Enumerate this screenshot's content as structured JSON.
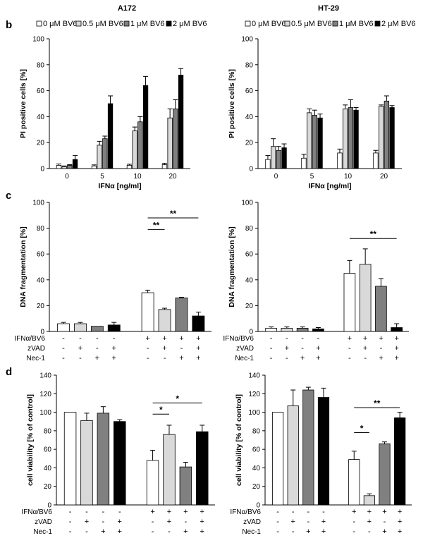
{
  "panel_labels": [
    "b",
    "c",
    "d"
  ],
  "titles": {
    "left": "A172",
    "right": "HT-29"
  },
  "colors": {
    "c0": "#ffffff",
    "c1": "#d9d9d9",
    "c2": "#808080",
    "c3": "#000000",
    "stroke": "#000000"
  },
  "treatment_rows": [
    {
      "label": "IFNα/BV6",
      "marks": [
        "-",
        "-",
        "-",
        "-",
        "+",
        "+",
        "+",
        "+"
      ]
    },
    {
      "label": "zVAD",
      "marks": [
        "-",
        "+",
        "-",
        "+",
        "-",
        "+",
        "-",
        "+"
      ]
    },
    {
      "label": "Nec-1",
      "marks": [
        "-",
        "-",
        "+",
        "+",
        "-",
        "-",
        "+",
        "+"
      ]
    }
  ],
  "chart_data": [
    {
      "panel": "b",
      "title": "A172",
      "type": "bar",
      "legend": [
        "0 μM BV6",
        "0.5 μM BV6",
        "1 μM BV6",
        "2 μM BV6"
      ],
      "xlabel": "IFNα [ng/ml]",
      "ylabel": "PI positive cells [%]",
      "ylim": [
        0,
        100
      ],
      "yticks": [
        0,
        20,
        40,
        60,
        80,
        100
      ],
      "categories": [
        "0",
        "5",
        "10",
        "20"
      ],
      "series": [
        {
          "name": "0 μM BV6",
          "values": [
            2.5,
            2,
            2.5,
            3
          ],
          "errors": [
            1,
            0.8,
            0.8,
            1
          ]
        },
        {
          "name": "0.5 μM BV6",
          "values": [
            1.5,
            18,
            29,
            39
          ],
          "errors": [
            0.5,
            3,
            3,
            7
          ]
        },
        {
          "name": "1 μM BV6",
          "values": [
            2.5,
            23,
            36,
            46
          ],
          "errors": [
            0.5,
            2,
            4,
            7
          ]
        },
        {
          "name": "2 μM BV6",
          "values": [
            7,
            50,
            64,
            72
          ],
          "errors": [
            3,
            6,
            7,
            5
          ]
        }
      ],
      "significance": []
    },
    {
      "panel": "b",
      "title": "HT-29",
      "type": "bar",
      "legend": [
        "0 μM BV6",
        "0.5 μM BV6",
        "1 μM BV6",
        "2 μM BV6"
      ],
      "xlabel": "IFNα [ng/ml]",
      "ylabel": "PI positive cells [%]",
      "ylim": [
        0,
        100
      ],
      "yticks": [
        0,
        20,
        40,
        60,
        80,
        100
      ],
      "categories": [
        "0",
        "5",
        "10",
        "20"
      ],
      "series": [
        {
          "name": "0 μM BV6",
          "values": [
            7,
            8,
            12,
            12
          ],
          "errors": [
            3,
            3,
            3,
            2
          ]
        },
        {
          "name": "0.5 μM BV6",
          "values": [
            17,
            43,
            46,
            48
          ],
          "errors": [
            6,
            3,
            3,
            1
          ]
        },
        {
          "name": "1 μM BV6",
          "values": [
            14,
            41,
            47,
            52
          ],
          "errors": [
            3,
            4,
            6,
            4
          ]
        },
        {
          "name": "2 μM BV6",
          "values": [
            16,
            39,
            45,
            47
          ],
          "errors": [
            3,
            3,
            2,
            1.5
          ]
        }
      ],
      "significance": []
    },
    {
      "panel": "c",
      "title": "",
      "type": "bar",
      "ylabel": "DNA fragmentation [%]",
      "ylim": [
        0,
        100
      ],
      "yticks": [
        0,
        20,
        40,
        60,
        80,
        100
      ],
      "values": [
        6,
        6,
        4,
        5,
        30,
        17,
        26,
        12
      ],
      "errors": [
        1,
        1,
        0,
        2,
        2,
        1,
        0.5,
        3
      ],
      "significance": [
        {
          "from": 4,
          "to": 5,
          "label": "**",
          "y": 79
        },
        {
          "from": 4,
          "to": 7,
          "label": "**",
          "y": 88
        }
      ]
    },
    {
      "panel": "c",
      "title": "",
      "type": "bar",
      "ylabel": "DNA fragmentation [%]",
      "ylim": [
        0,
        100
      ],
      "yticks": [
        0,
        20,
        40,
        60,
        80,
        100
      ],
      "values": [
        2.5,
        2.5,
        2.5,
        2,
        45,
        52,
        35,
        3
      ],
      "errors": [
        1,
        1,
        1,
        1,
        10,
        12,
        6,
        3
      ],
      "significance": [
        {
          "from": 4,
          "to": 7,
          "label": "**",
          "y": 72
        }
      ]
    },
    {
      "panel": "d",
      "title": "",
      "type": "bar",
      "ylabel": "cell viability [% of control]",
      "ylim": [
        0,
        140
      ],
      "yticks": [
        0,
        20,
        40,
        60,
        80,
        100,
        120,
        140
      ],
      "values": [
        100,
        91,
        99,
        90,
        48,
        76,
        41,
        79
      ],
      "errors": [
        0,
        8,
        7,
        2,
        11,
        10,
        5,
        7
      ],
      "significance": [
        {
          "from": 4,
          "to": 5,
          "label": "*",
          "y": 98
        },
        {
          "from": 4,
          "to": 7,
          "label": "*",
          "y": 110
        }
      ]
    },
    {
      "panel": "d",
      "title": "",
      "type": "bar",
      "ylabel": "cell viability [% of control]",
      "ylim": [
        0,
        140
      ],
      "yticks": [
        0,
        20,
        40,
        60,
        80,
        100,
        120,
        140
      ],
      "values": [
        100,
        107,
        124,
        116,
        49,
        10,
        66,
        94
      ],
      "errors": [
        0,
        17,
        3,
        10,
        9,
        2,
        2,
        6
      ],
      "significance": [
        {
          "from": 4,
          "to": 5,
          "label": "*",
          "y": 78
        },
        {
          "from": 4,
          "to": 7,
          "label": "**",
          "y": 105
        }
      ]
    }
  ]
}
